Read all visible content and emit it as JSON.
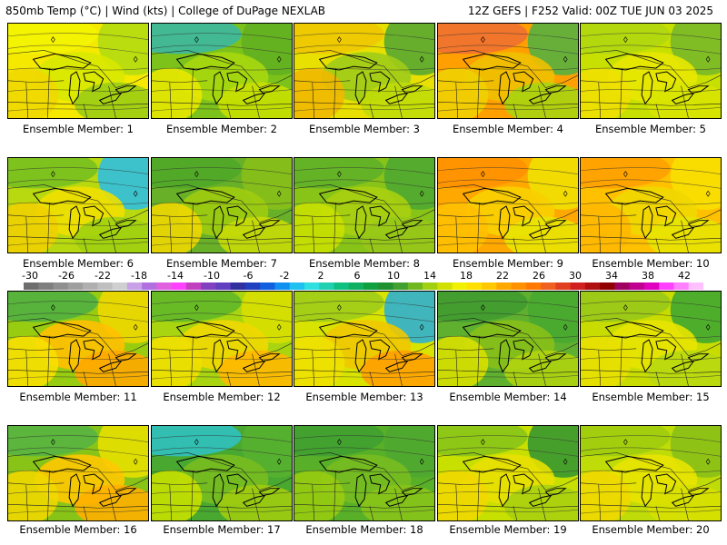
{
  "header": {
    "left": "850mb Temp (°C) | Wind (kts) | College of DuPage NEXLAB",
    "right": "12Z GEFS | F252 Valid: 00Z TUE JUN 03 2025"
  },
  "colorbar": {
    "labels": [
      "-30",
      "-26",
      "-22",
      "-18",
      "-14",
      "-10",
      "-6",
      "-2",
      "2",
      "6",
      "10",
      "14",
      "18",
      "22",
      "26",
      "30",
      "34",
      "38",
      "42"
    ],
    "colors": [
      "#6e6e6e",
      "#7f7f7f",
      "#8f8f8f",
      "#9f9f9f",
      "#afafaf",
      "#bfbfbf",
      "#cfcfcf",
      "#c8a0e8",
      "#b070e0",
      "#e060e0",
      "#ff40ff",
      "#c040c0",
      "#8040c0",
      "#6040c0",
      "#3030a0",
      "#2040c0",
      "#1060e0",
      "#1090f0",
      "#20c0f0",
      "#30e0e0",
      "#20d0b0",
      "#10c080",
      "#10b060",
      "#10a040",
      "#209030",
      "#40a030",
      "#70b820",
      "#a0d010",
      "#d0e000",
      "#f0f000",
      "#ffe000",
      "#ffc800",
      "#ffa800",
      "#ff9000",
      "#ff7800",
      "#f06020",
      "#e04020",
      "#d02020",
      "#b01010",
      "#900000",
      "#a00060",
      "#c00090",
      "#e000c0",
      "#ff40ff",
      "#ff80ff",
      "#ffc0ff"
    ]
  },
  "members": [
    {
      "label": "Ensemble Member: 1",
      "colors": [
        "#f5e900",
        "#f4f400",
        "#d8e800",
        "#b3dc10",
        "#9ccd14",
        "#f0d800"
      ]
    },
    {
      "label": "Ensemble Member: 2",
      "colors": [
        "#7cc21a",
        "#3cb8a0",
        "#a8d810",
        "#62b020",
        "#c8e000",
        "#e8e800"
      ]
    },
    {
      "label": "Ensemble Member: 3",
      "colors": [
        "#e8e000",
        "#f0c800",
        "#a0cc18",
        "#58a830",
        "#c0dc08",
        "#f0b800"
      ]
    },
    {
      "label": "Ensemble Member: 4",
      "colors": [
        "#ffa000",
        "#f07030",
        "#f0c000",
        "#58b040",
        "#a8d410",
        "#f0d000"
      ]
    },
    {
      "label": "Ensemble Member: 5",
      "colors": [
        "#c8e000",
        "#b0d810",
        "#e8e800",
        "#78b828",
        "#d8e400",
        "#f0e000"
      ]
    },
    {
      "label": "Ensemble Member: 6",
      "colors": [
        "#b8d810",
        "#78c020",
        "#f0e000",
        "#30c0e0",
        "#a0d010",
        "#f0d000"
      ]
    },
    {
      "label": "Ensemble Member: 7",
      "colors": [
        "#68b028",
        "#50a828",
        "#a0cc10",
        "#88c018",
        "#c8dc08",
        "#f0d800"
      ]
    },
    {
      "label": "Ensemble Member: 8",
      "colors": [
        "#88c418",
        "#60b028",
        "#a8d010",
        "#50a830",
        "#98c818",
        "#c8e000"
      ]
    },
    {
      "label": "Ensemble Member: 9",
      "colors": [
        "#ffa800",
        "#ff9000",
        "#f8d000",
        "#f0e000",
        "#e8e400",
        "#ffc000"
      ]
    },
    {
      "label": "Ensemble Member: 10",
      "colors": [
        "#ffc000",
        "#ffa000",
        "#f0d800",
        "#f8e000",
        "#e8e400",
        "#ffb800"
      ]
    },
    {
      "label": "Ensemble Member: 11",
      "colors": [
        "#98cc10",
        "#50b040",
        "#ffc000",
        "#f0d800",
        "#ffa800",
        "#f8e000"
      ]
    },
    {
      "label": "Ensemble Member: 12",
      "colors": [
        "#a8d410",
        "#60b828",
        "#f0d800",
        "#d8e000",
        "#ffb800",
        "#f0e000"
      ]
    },
    {
      "label": "Ensemble Member: 13",
      "colors": [
        "#d8e400",
        "#a0cc18",
        "#f0c800",
        "#30b0d0",
        "#ffa000",
        "#f0e000"
      ]
    },
    {
      "label": "Ensemble Member: 14",
      "colors": [
        "#60b030",
        "#409c30",
        "#88c018",
        "#48a830",
        "#b0d410",
        "#d8e000"
      ]
    },
    {
      "label": "Ensemble Member: 15",
      "colors": [
        "#c8dc00",
        "#98c818",
        "#e8e400",
        "#40a830",
        "#b8d810",
        "#e8e000"
      ]
    },
    {
      "label": "Ensemble Member: 16",
      "colors": [
        "#88c418",
        "#58b440",
        "#ffc800",
        "#e8e000",
        "#ffb000",
        "#f0d800"
      ]
    },
    {
      "label": "Ensemble Member: 17",
      "colors": [
        "#48a830",
        "#30c0c0",
        "#78bc20",
        "#58b030",
        "#a0cc10",
        "#c8e000"
      ]
    },
    {
      "label": "Ensemble Member: 18",
      "colors": [
        "#58b028",
        "#40a030",
        "#78bc20",
        "#50a830",
        "#88c418",
        "#98cc10"
      ]
    },
    {
      "label": "Ensemble Member: 19",
      "colors": [
        "#c8e000",
        "#88c418",
        "#e8e000",
        "#389830",
        "#a8d010",
        "#f0d800"
      ]
    },
    {
      "label": "Ensemble Member: 20",
      "colors": [
        "#c0dc08",
        "#a0cc10",
        "#e8e400",
        "#88c018",
        "#d8e000",
        "#f0d800"
      ]
    }
  ]
}
